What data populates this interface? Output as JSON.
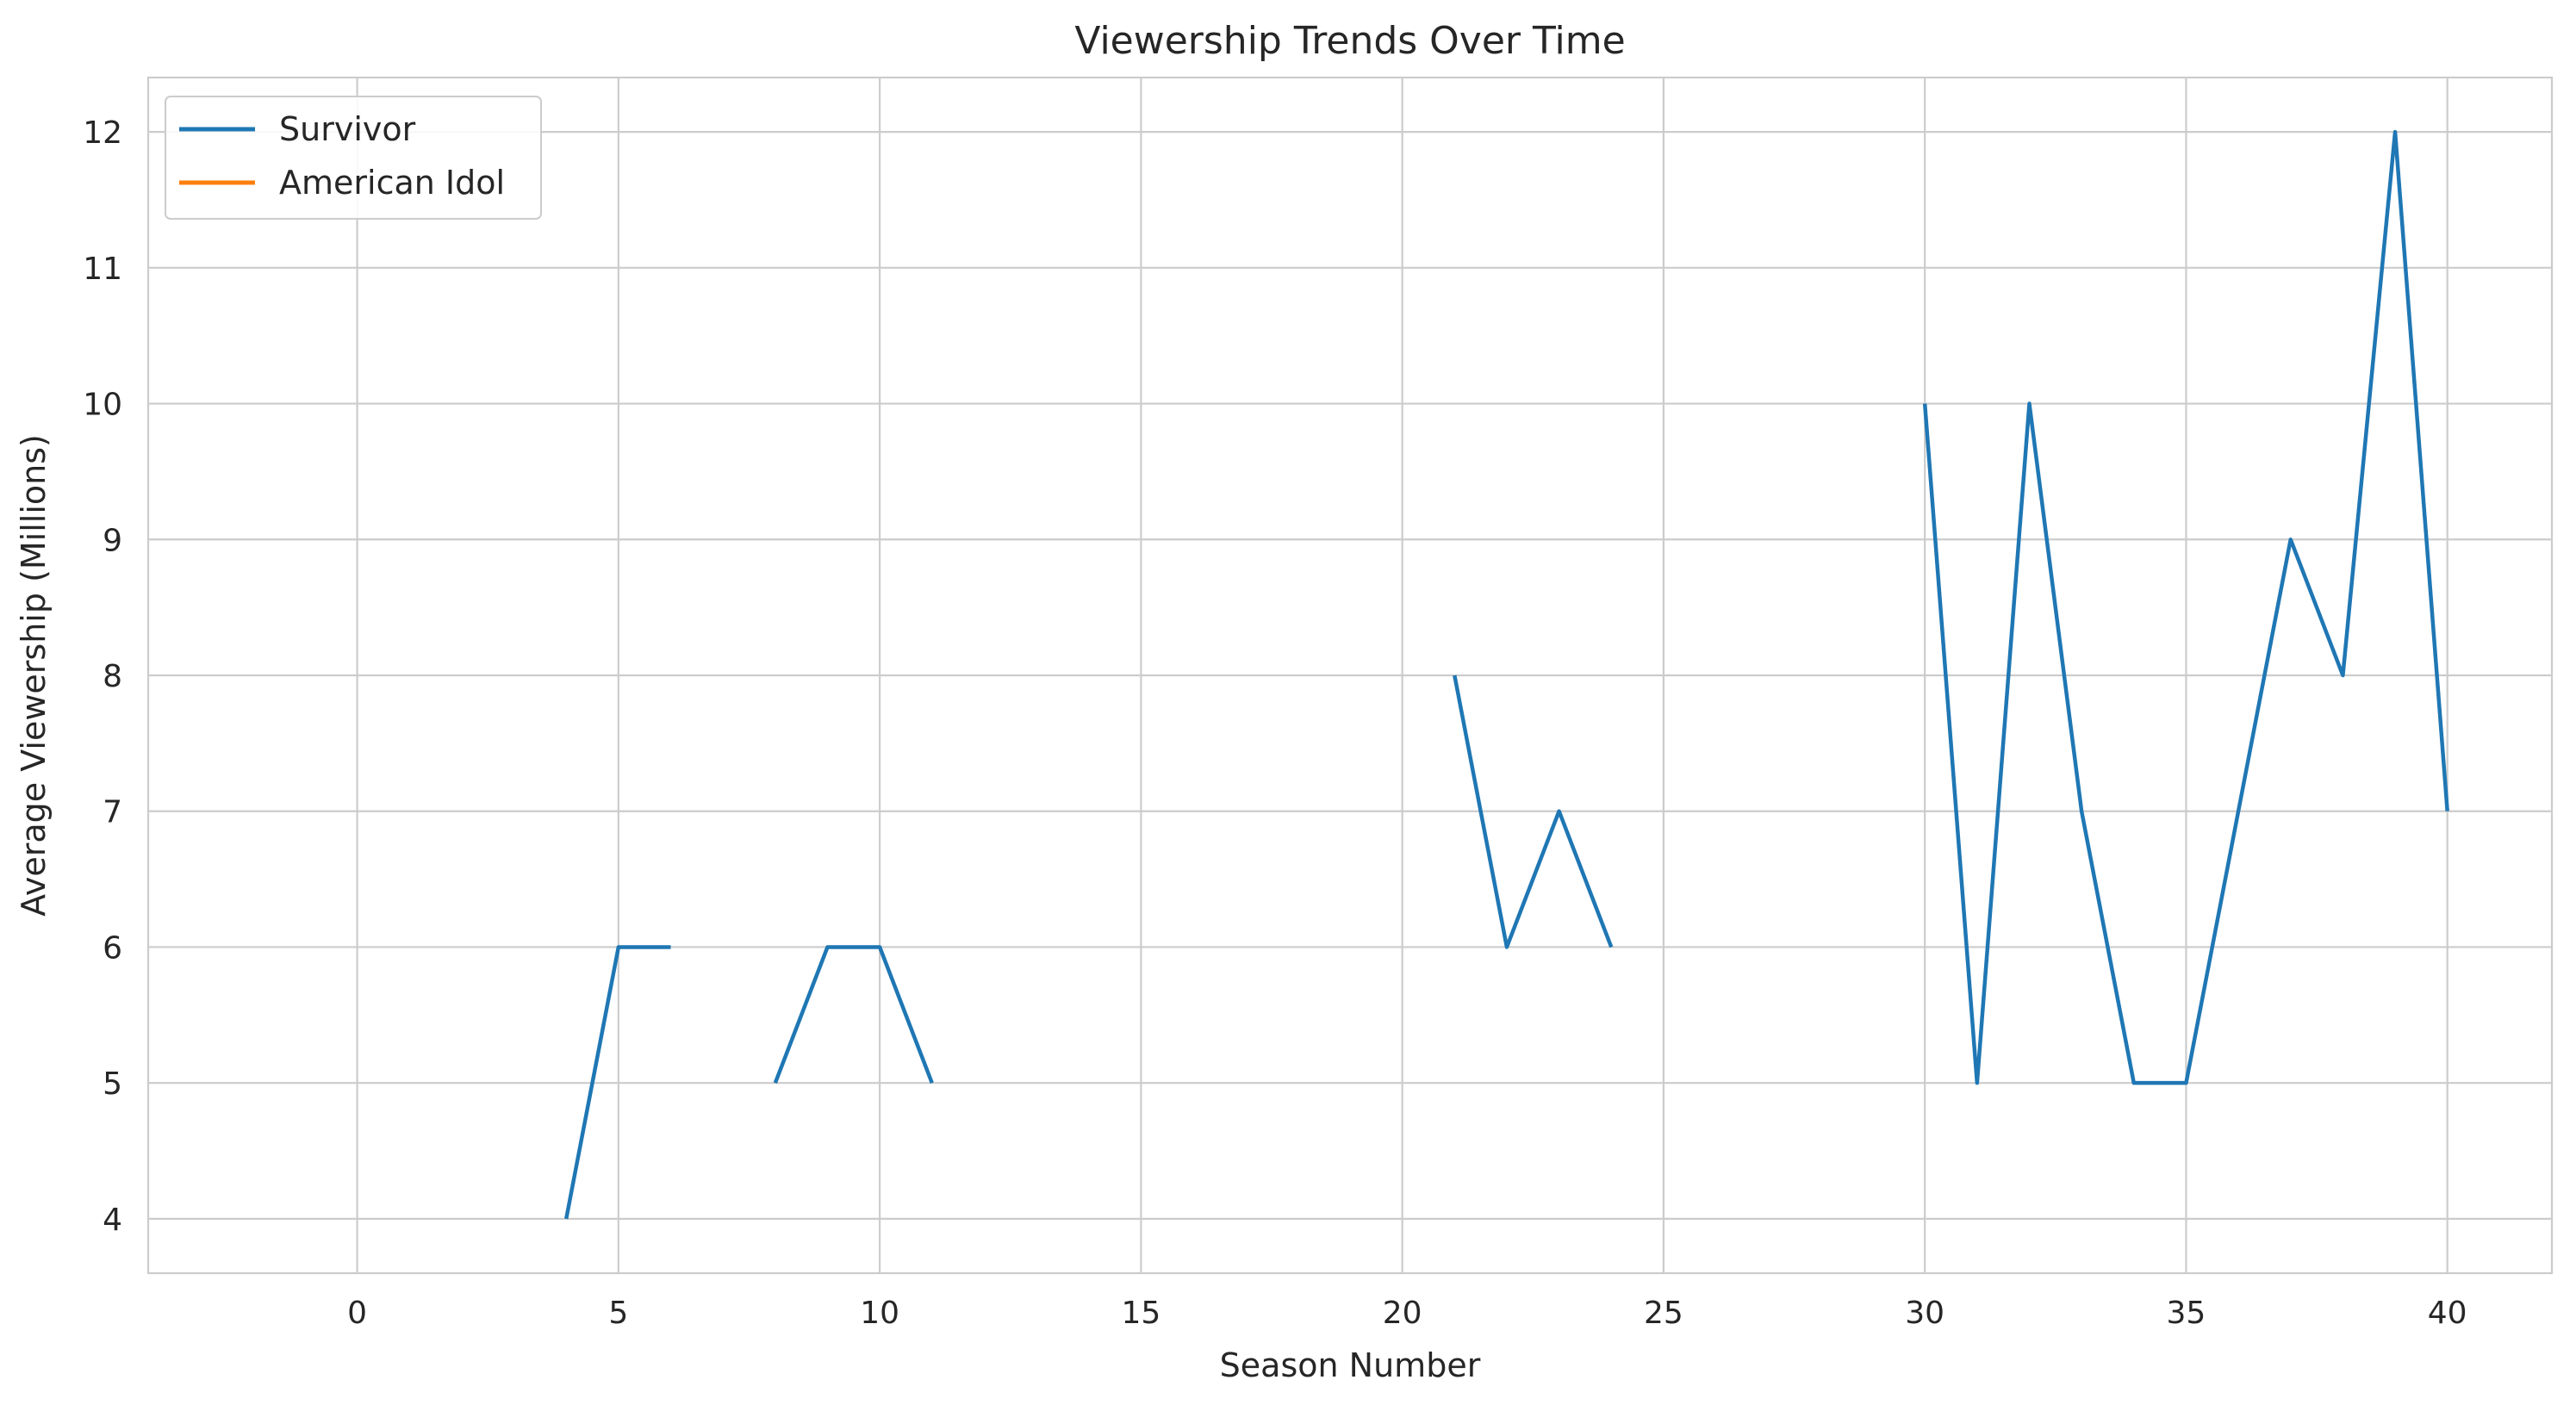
{
  "chart_data": {
    "type": "line",
    "title": "Viewership Trends Over Time",
    "xlabel": "Season Number",
    "ylabel": "Average Viewership (Millions)",
    "xlim": [
      -4,
      42
    ],
    "ylim": [
      3.6,
      12.4
    ],
    "xticks": [
      0,
      5,
      10,
      15,
      20,
      25,
      30,
      35,
      40
    ],
    "yticks": [
      4,
      5,
      6,
      7,
      8,
      9,
      10,
      11,
      12
    ],
    "grid": true,
    "legend_position": "top-left",
    "series": [
      {
        "name": "Survivor",
        "color": "#1f77b4",
        "x": [
          0,
          1,
          2,
          3,
          4,
          5,
          6,
          7,
          8,
          9,
          10,
          11,
          12,
          13,
          14,
          15,
          16,
          17,
          18,
          19,
          20,
          21,
          22,
          23,
          24,
          25,
          26,
          27,
          28,
          29,
          30,
          31,
          32,
          33,
          34,
          35,
          36,
          37,
          38,
          39,
          40
        ],
        "values": [
          null,
          null,
          null,
          null,
          4,
          6,
          6,
          null,
          5,
          6,
          6,
          5,
          null,
          null,
          null,
          null,
          null,
          null,
          null,
          null,
          null,
          8,
          6,
          7,
          6,
          null,
          null,
          null,
          null,
          null,
          10,
          5,
          10,
          7,
          5,
          5,
          7,
          9,
          8,
          12,
          7
        ]
      },
      {
        "name": "American Idol",
        "color": "#ff7f0e",
        "x": [],
        "values": []
      }
    ]
  }
}
